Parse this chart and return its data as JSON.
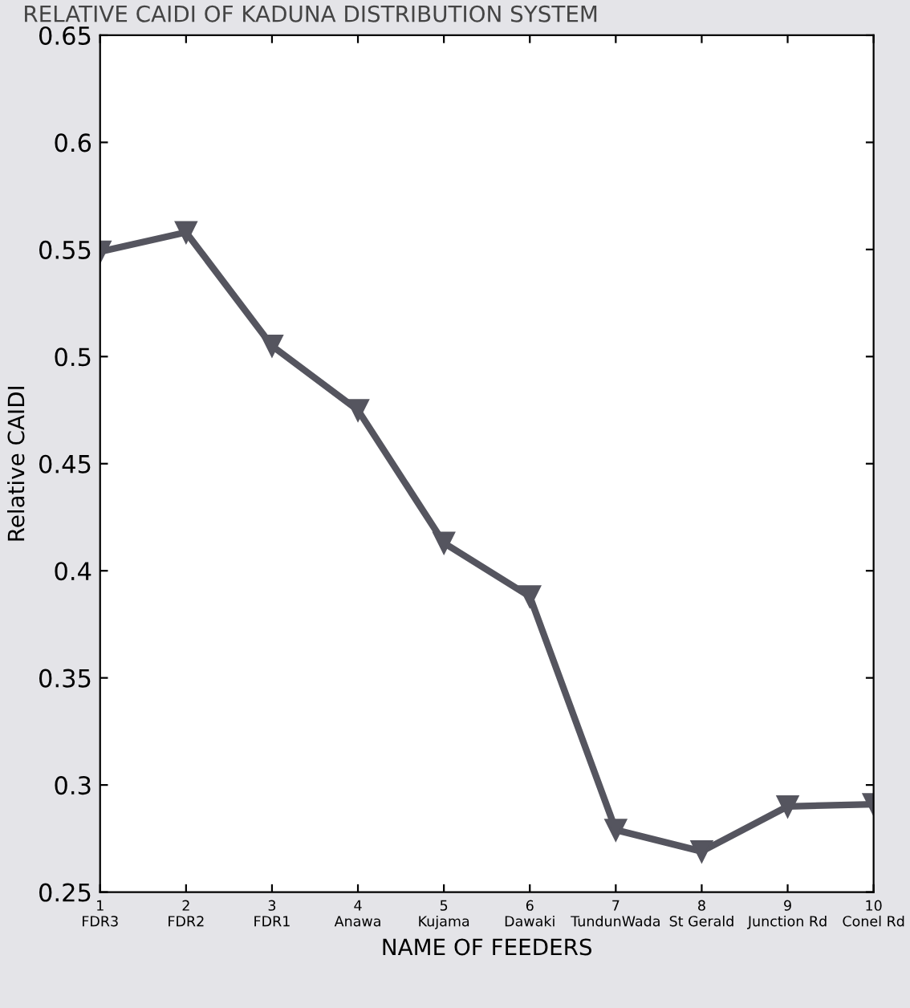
{
  "chart_data": {
    "type": "line",
    "title": "RELATIVE CAIDI OF KADUNA DISTRIBUTION SYSTEM",
    "xlabel": "NAME OF FEEDERS",
    "ylabel": "Relative CAIDI",
    "x": [
      1,
      2,
      3,
      4,
      5,
      6,
      7,
      8,
      9,
      10
    ],
    "series": [
      {
        "color": "#55555f",
        "values": [
          0.549,
          0.558,
          0.505,
          0.475,
          0.413,
          0.388,
          0.279,
          0.269,
          0.29,
          0.291
        ]
      }
    ],
    "xlim": [
      1,
      10
    ],
    "ylim": [
      0.25,
      0.65
    ],
    "xticks": [
      {
        "value": 1,
        "label": "1\nFDR3"
      },
      {
        "value": 2,
        "label": "2\nFDR2"
      },
      {
        "value": 3,
        "label": "3\nFDR1"
      },
      {
        "value": 4,
        "label": "4\nAnawa"
      },
      {
        "value": 5,
        "label": "5\nKujama"
      },
      {
        "value": 6,
        "label": "6\nDawaki"
      },
      {
        "value": 7,
        "label": "7\nTundunWada"
      },
      {
        "value": 8,
        "label": "8\nSt Gerald"
      },
      {
        "value": 9,
        "label": "9\nJunction Rd"
      },
      {
        "value": 10,
        "label": "10\nConel Rd"
      }
    ],
    "yticks": [
      0.25,
      0.3,
      0.35,
      0.4,
      0.45,
      0.5,
      0.55,
      0.6,
      0.65
    ],
    "marker": "triangle",
    "line_style": "solid",
    "grid": false,
    "legend": false
  }
}
